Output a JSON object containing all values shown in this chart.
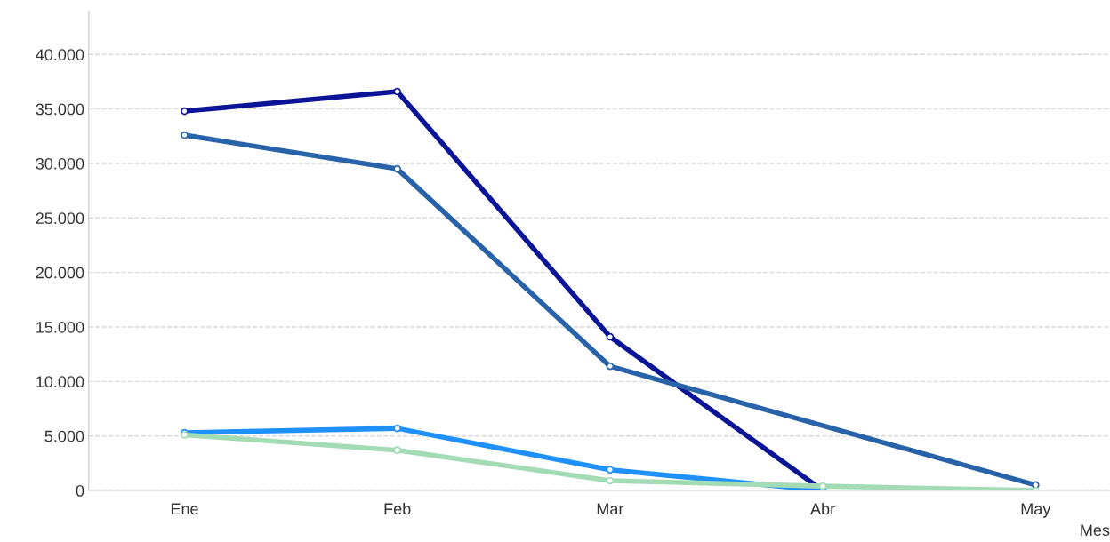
{
  "chart_data": {
    "type": "line",
    "xlabel": "Mes",
    "categories": [
      "Ene",
      "Feb",
      "Mar",
      "Abr",
      "May"
    ],
    "series": [
      {
        "color": "#0a1496",
        "values": [
          34800,
          36600,
          14100,
          0,
          null
        ]
      },
      {
        "color": "#2862a8",
        "values": [
          32600,
          29500,
          11400,
          null,
          500
        ]
      },
      {
        "color": "#1e90ff",
        "values": [
          5300,
          5700,
          1900,
          0,
          null
        ]
      },
      {
        "color": "#a2dbb4",
        "values": [
          5100,
          3700,
          900,
          400,
          0
        ]
      }
    ],
    "ylim": [
      0,
      44000
    ],
    "yticks": [
      0,
      {
        "value": 5000,
        "label": "5.000"
      },
      {
        "value": 10000,
        "label": "10.000"
      },
      {
        "value": 15000,
        "label": "15.000"
      },
      {
        "value": 20000,
        "label": "20.000"
      },
      {
        "value": 25000,
        "label": "25.000"
      },
      {
        "value": 30000,
        "label": "30.000"
      },
      {
        "value": 35000,
        "label": "35.000"
      },
      {
        "value": 40000,
        "label": "40.000"
      }
    ],
    "grid": "y",
    "marker": "circle",
    "line_style": "solid",
    "legend": false
  }
}
